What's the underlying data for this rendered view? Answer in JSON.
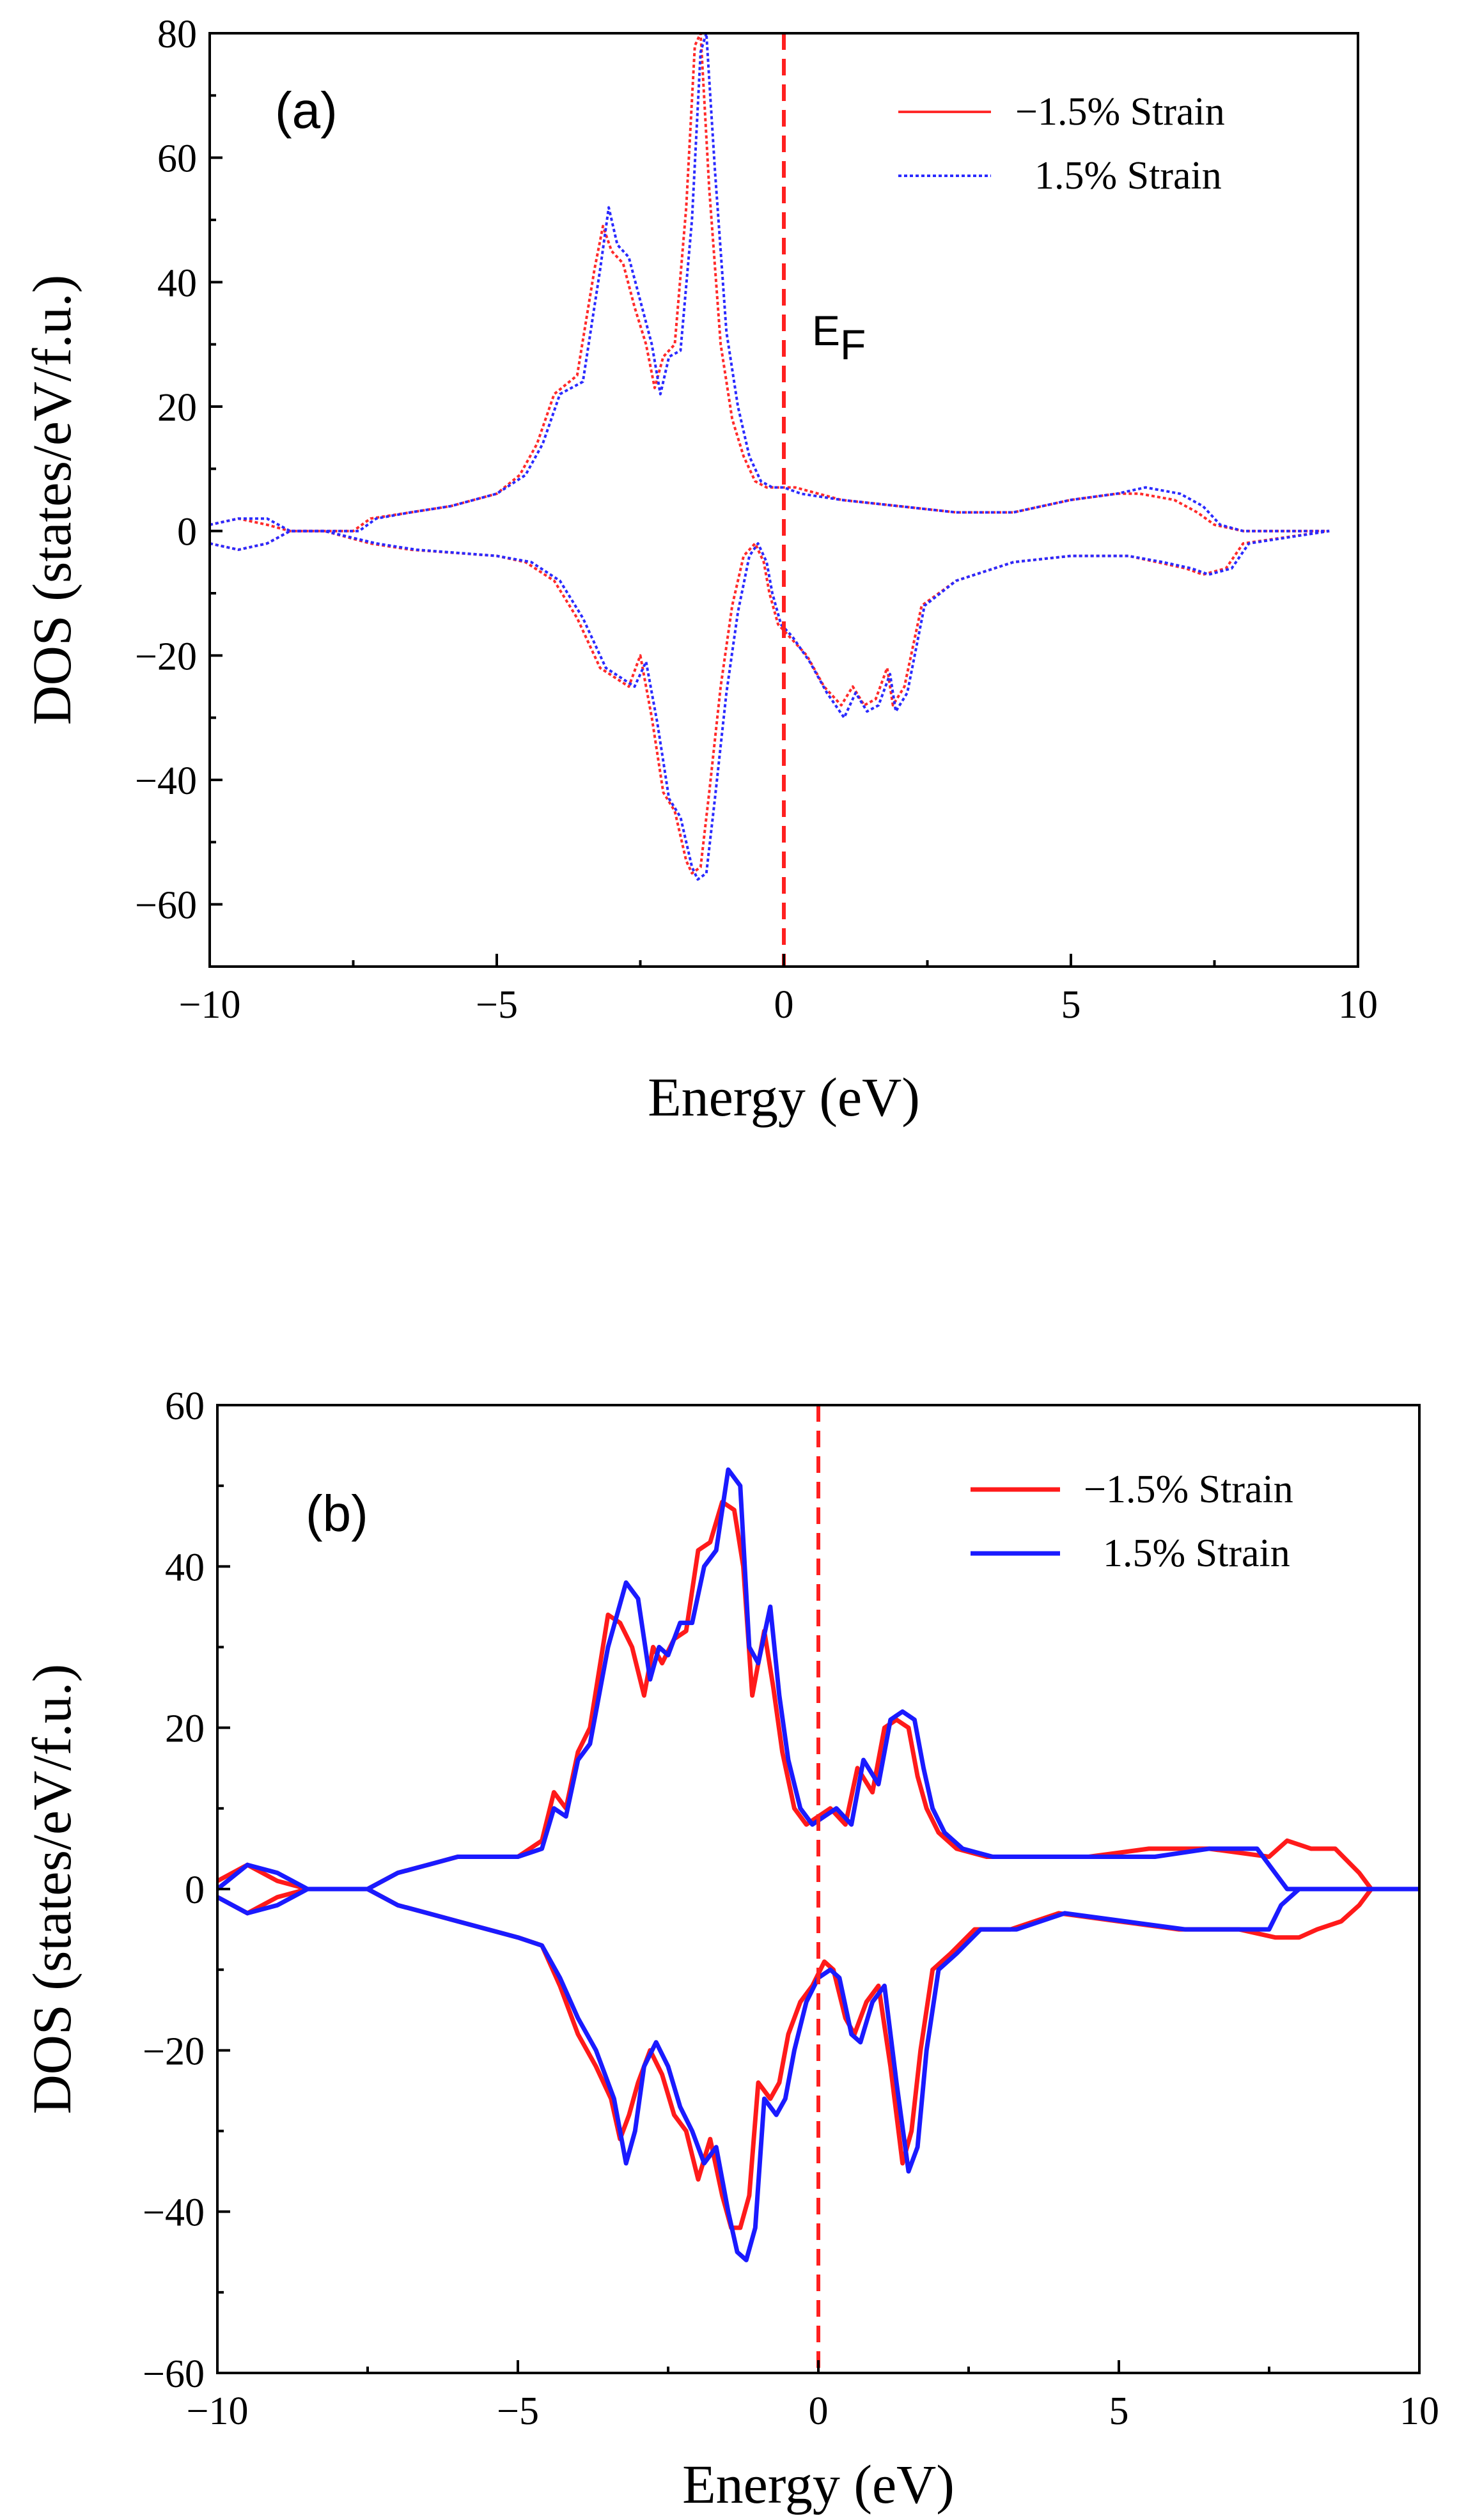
{
  "chart_data": [
    {
      "type": "line",
      "panel_label": "(a)",
      "xlabel": "Energy (eV)",
      "ylabel": "DOS (states/eV/f.u.)",
      "xlim": [
        -10,
        10
      ],
      "ylim": [
        -70,
        80
      ],
      "x_ticks": [
        -10,
        -5,
        0,
        5,
        10
      ],
      "y_ticks": [
        -60,
        -40,
        -20,
        0,
        20,
        40,
        60,
        80
      ],
      "x_tick_labels": [
        "−10",
        "−5",
        "0",
        "5",
        "10"
      ],
      "y_tick_labels": [
        "−60",
        "−40",
        "−20",
        "0",
        "20",
        "40",
        "60",
        "80"
      ],
      "fermi_level": 0,
      "annotation": {
        "text": "E",
        "subscript": "F"
      },
      "legend": {
        "position": "top-right",
        "entries": [
          "−1.5% Strain",
          "1.5% Strain"
        ]
      },
      "line_style": "dotted",
      "series": [
        {
          "name": "−1.5% Strain",
          "color": "#ff2a2a",
          "up": {
            "x": [
              -10.0,
              -9.5,
              -9.0,
              -8.6,
              -8.0,
              -7.5,
              -7.2,
              -6.5,
              -5.8,
              -5.0,
              -4.6,
              -4.3,
              -4.0,
              -3.6,
              -3.3,
              -3.15,
              -3.0,
              -2.8,
              -2.6,
              -2.4,
              -2.25,
              -2.1,
              -1.9,
              -1.7,
              -1.55,
              -1.45,
              -1.3,
              -1.1,
              -0.9,
              -0.7,
              -0.5,
              -0.3,
              -0.1,
              0.2,
              1.0,
              2.0,
              3.0,
              4.0,
              5.0,
              5.8,
              6.2,
              6.8,
              7.2,
              7.5,
              8.0,
              9.5
            ],
            "y": [
              1,
              2,
              1,
              0,
              0,
              0,
              2,
              3,
              4,
              6,
              9,
              14,
              22,
              25,
              42,
              49,
              45,
              43,
              36,
              30,
              23,
              28,
              30,
              52,
              78,
              80,
              55,
              30,
              18,
              12,
              8,
              7,
              7,
              7,
              5,
              4,
              3,
              3,
              5,
              6,
              6,
              5,
              3,
              1,
              0,
              0
            ]
          },
          "down": {
            "x": [
              -10.0,
              -9.5,
              -9.0,
              -8.6,
              -8.0,
              -7.2,
              -6.5,
              -5.0,
              -4.5,
              -4.0,
              -3.6,
              -3.2,
              -2.7,
              -2.5,
              -2.3,
              -2.1,
              -1.9,
              -1.7,
              -1.6,
              -1.45,
              -1.3,
              -1.1,
              -0.9,
              -0.7,
              -0.5,
              -0.35,
              -0.25,
              -0.1,
              0.1,
              0.4,
              0.7,
              1.0,
              1.2,
              1.4,
              1.6,
              1.8,
              1.9,
              2.1,
              2.4,
              3.0,
              4.0,
              5.0,
              6.0,
              6.5,
              7.0,
              7.3,
              7.7,
              8.0,
              9.5
            ],
            "y": [
              -2,
              -3,
              -2,
              0,
              0,
              -2,
              -3,
              -4,
              -5,
              -8,
              -14,
              -22,
              -25,
              -20,
              -30,
              -42,
              -45,
              -53,
              -55,
              -54,
              -42,
              -25,
              -12,
              -4,
              -2,
              -5,
              -10,
              -15,
              -17,
              -20,
              -25,
              -28,
              -25,
              -28,
              -27,
              -22,
              -28,
              -25,
              -12,
              -8,
              -5,
              -4,
              -4,
              -5,
              -6,
              -7,
              -6,
              -2,
              0
            ]
          }
        },
        {
          "name": "1.5% Strain",
          "color": "#2a2aff",
          "up": {
            "x": [
              -10.0,
              -9.5,
              -9.0,
              -8.6,
              -8.0,
              -7.4,
              -7.1,
              -6.5,
              -5.8,
              -5.0,
              -4.5,
              -4.2,
              -3.9,
              -3.5,
              -3.2,
              -3.05,
              -2.9,
              -2.7,
              -2.5,
              -2.3,
              -2.15,
              -2.0,
              -1.8,
              -1.6,
              -1.45,
              -1.35,
              -1.2,
              -1.0,
              -0.8,
              -0.6,
              -0.4,
              -0.2,
              0.0,
              0.3,
              1.0,
              2.0,
              3.0,
              4.0,
              5.0,
              5.8,
              6.3,
              6.9,
              7.3,
              7.6,
              8.0,
              9.5
            ],
            "y": [
              1,
              2,
              2,
              0,
              0,
              0,
              2,
              3,
              4,
              6,
              9,
              14,
              22,
              24,
              42,
              52,
              46,
              44,
              37,
              30,
              22,
              28,
              29,
              50,
              77,
              80,
              58,
              32,
              20,
              12,
              8,
              7,
              7,
              6,
              5,
              4,
              3,
              3,
              5,
              6,
              7,
              6,
              4,
              1,
              0,
              0
            ]
          },
          "down": {
            "x": [
              -10.0,
              -9.5,
              -9.0,
              -8.6,
              -8.0,
              -7.1,
              -6.4,
              -5.0,
              -4.4,
              -3.9,
              -3.5,
              -3.1,
              -2.6,
              -2.4,
              -2.2,
              -2.0,
              -1.8,
              -1.6,
              -1.5,
              -1.35,
              -1.2,
              -1.0,
              -0.8,
              -0.6,
              -0.45,
              -0.3,
              -0.2,
              -0.05,
              0.15,
              0.45,
              0.75,
              1.05,
              1.25,
              1.45,
              1.65,
              1.85,
              1.95,
              2.15,
              2.45,
              3.0,
              4.0,
              5.0,
              6.0,
              6.6,
              7.1,
              7.4,
              7.8,
              8.1,
              9.5
            ],
            "y": [
              -2,
              -3,
              -2,
              0,
              0,
              -2,
              -3,
              -4,
              -5,
              -8,
              -14,
              -22,
              -25,
              -21,
              -31,
              -43,
              -46,
              -54,
              -56,
              -55,
              -43,
              -26,
              -13,
              -4,
              -2,
              -5,
              -10,
              -15,
              -17,
              -21,
              -26,
              -30,
              -26,
              -29,
              -28,
              -23,
              -29,
              -26,
              -12,
              -8,
              -5,
              -4,
              -4,
              -5,
              -6,
              -7,
              -6,
              -2,
              0
            ]
          }
        }
      ]
    },
    {
      "type": "line",
      "panel_label": "(b)",
      "xlabel": "Energy (eV)",
      "ylabel": "DOS (states/eV/f.u.)",
      "xlim": [
        -10,
        10
      ],
      "ylim": [
        -60,
        60
      ],
      "x_ticks": [
        -10,
        -5,
        0,
        5,
        10
      ],
      "y_ticks": [
        -60,
        -40,
        -20,
        0,
        20,
        40,
        60
      ],
      "x_tick_labels": [
        "−10",
        "−5",
        "0",
        "5",
        "10"
      ],
      "y_tick_labels": [
        "−60",
        "−40",
        "−20",
        "0",
        "20",
        "40",
        "60"
      ],
      "fermi_level": 0,
      "legend": {
        "position": "top-right",
        "entries": [
          "−1.5% Strain",
          "1.5% Strain"
        ]
      },
      "line_style": "solid",
      "series": [
        {
          "name": "−1.5% Strain",
          "color": "#ff1a1a",
          "up": {
            "x": [
              -10.0,
              -9.5,
              -9.0,
              -8.5,
              -8.0,
              -7.5,
              -7.0,
              -6.5,
              -6.0,
              -5.5,
              -5.0,
              -4.6,
              -4.4,
              -4.2,
              -4.0,
              -3.8,
              -3.5,
              -3.3,
              -3.1,
              -2.9,
              -2.75,
              -2.6,
              -2.4,
              -2.2,
              -2.0,
              -1.8,
              -1.6,
              -1.4,
              -1.25,
              -1.1,
              -0.9,
              -0.75,
              -0.6,
              -0.4,
              -0.2,
              0.0,
              0.2,
              0.45,
              0.65,
              0.9,
              1.1,
              1.3,
              1.5,
              1.65,
              1.8,
              2.0,
              2.3,
              2.8,
              3.5,
              4.5,
              5.5,
              6.5,
              7.5,
              7.8,
              8.2,
              8.6,
              9.0,
              9.2,
              10.0
            ],
            "y": [
              1,
              3,
              1,
              0,
              0,
              0,
              2,
              3,
              4,
              4,
              4,
              6,
              12,
              10,
              17,
              20,
              34,
              33,
              30,
              24,
              30,
              28,
              31,
              32,
              42,
              43,
              48,
              47,
              40,
              24,
              32,
              25,
              17,
              10,
              8,
              9,
              10,
              8,
              15,
              12,
              20,
              21,
              20,
              14,
              10,
              7,
              5,
              4,
              4,
              4,
              5,
              5,
              4,
              6,
              5,
              5,
              2,
              0,
              0
            ]
          },
          "down": {
            "x": [
              -10.0,
              -9.5,
              -9.0,
              -8.5,
              -8.0,
              -7.5,
              -7.0,
              -6.5,
              -6.0,
              -5.5,
              -5.0,
              -4.6,
              -4.3,
              -4.0,
              -3.7,
              -3.45,
              -3.3,
              -3.15,
              -3.0,
              -2.8,
              -2.6,
              -2.4,
              -2.2,
              -2.0,
              -1.8,
              -1.6,
              -1.45,
              -1.3,
              -1.15,
              -1.0,
              -0.8,
              -0.65,
              -0.5,
              -0.3,
              -0.1,
              0.1,
              0.25,
              0.45,
              0.6,
              0.8,
              1.0,
              1.2,
              1.4,
              1.55,
              1.7,
              1.9,
              2.2,
              2.6,
              3.2,
              4.0,
              5.0,
              6.0,
              7.0,
              7.6,
              8.0,
              8.3,
              8.7,
              9.0,
              9.2,
              10.0
            ],
            "y": [
              -1,
              -3,
              -1,
              0,
              0,
              0,
              -2,
              -3,
              -4,
              -5,
              -6,
              -7,
              -12,
              -18,
              -22,
              -26,
              -31,
              -28,
              -24,
              -20,
              -23,
              -28,
              -30,
              -36,
              -31,
              -38,
              -42,
              -42,
              -38,
              -24,
              -26,
              -24,
              -18,
              -14,
              -12,
              -9,
              -10,
              -16,
              -18,
              -14,
              -12,
              -22,
              -34,
              -30,
              -20,
              -10,
              -8,
              -5,
              -5,
              -3,
              -4,
              -5,
              -5,
              -6,
              -6,
              -5,
              -4,
              -2,
              0,
              0
            ]
          }
        },
        {
          "name": "1.5% Strain",
          "color": "#1a1aff",
          "up": {
            "x": [
              -10.0,
              -9.5,
              -9.0,
              -8.5,
              -8.0,
              -7.5,
              -7.0,
              -6.5,
              -6.0,
              -5.5,
              -5.0,
              -4.6,
              -4.4,
              -4.2,
              -4.0,
              -3.8,
              -3.5,
              -3.2,
              -3.0,
              -2.8,
              -2.65,
              -2.5,
              -2.3,
              -2.1,
              -1.9,
              -1.7,
              -1.5,
              -1.3,
              -1.15,
              -1.0,
              -0.8,
              -0.65,
              -0.5,
              -0.3,
              -0.1,
              0.1,
              0.3,
              0.55,
              0.75,
              1.0,
              1.2,
              1.4,
              1.6,
              1.75,
              1.9,
              2.1,
              2.4,
              2.9,
              3.6,
              4.6,
              5.6,
              6.5,
              7.3,
              7.6,
              7.8,
              8.2,
              10.0
            ],
            "y": [
              0,
              3,
              2,
              0,
              0,
              0,
              2,
              3,
              4,
              4,
              4,
              5,
              10,
              9,
              16,
              18,
              30,
              38,
              36,
              26,
              30,
              29,
              33,
              33,
              40,
              42,
              52,
              50,
              30,
              28,
              35,
              24,
              16,
              10,
              8,
              9,
              10,
              8,
              16,
              13,
              21,
              22,
              21,
              15,
              10,
              7,
              5,
              4,
              4,
              4,
              4,
              5,
              5,
              2,
              0,
              0,
              0
            ]
          },
          "down": {
            "x": [
              -10.0,
              -9.5,
              -9.0,
              -8.5,
              -8.0,
              -7.5,
              -7.0,
              -6.5,
              -6.0,
              -5.5,
              -5.0,
              -4.6,
              -4.3,
              -4.0,
              -3.7,
              -3.4,
              -3.2,
              -3.05,
              -2.9,
              -2.7,
              -2.5,
              -2.3,
              -2.1,
              -1.9,
              -1.7,
              -1.5,
              -1.35,
              -1.2,
              -1.05,
              -0.9,
              -0.7,
              -0.55,
              -0.4,
              -0.2,
              0.0,
              0.2,
              0.35,
              0.55,
              0.7,
              0.9,
              1.1,
              1.3,
              1.5,
              1.65,
              1.8,
              2.0,
              2.3,
              2.7,
              3.3,
              4.1,
              5.1,
              6.1,
              7.0,
              7.5,
              7.7,
              8.0,
              10.0
            ],
            "y": [
              -1,
              -3,
              -2,
              0,
              0,
              0,
              -2,
              -3,
              -4,
              -5,
              -6,
              -7,
              -11,
              -16,
              -20,
              -26,
              -34,
              -30,
              -22,
              -19,
              -22,
              -27,
              -30,
              -34,
              -32,
              -40,
              -45,
              -46,
              -42,
              -26,
              -28,
              -26,
              -20,
              -14,
              -11,
              -10,
              -11,
              -18,
              -19,
              -14,
              -12,
              -24,
              -35,
              -32,
              -20,
              -10,
              -8,
              -5,
              -5,
              -3,
              -4,
              -5,
              -5,
              -5,
              -2,
              0,
              0
            ]
          }
        }
      ]
    }
  ]
}
